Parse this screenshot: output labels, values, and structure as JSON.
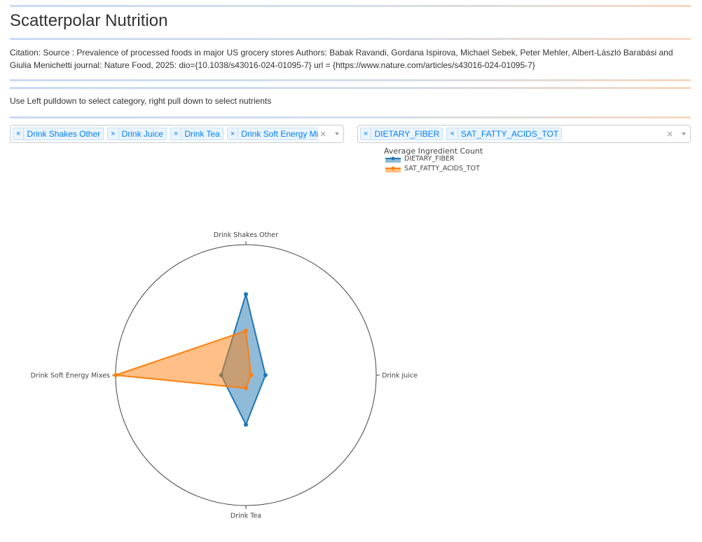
{
  "page": {
    "title": "Scatterpolar Nutrition",
    "citation": "Citation: Source : Prevalence of processed foods in major US grocery stores Authors: Babak Ravandi, Gordana Ispirova, Michael Sebek, Peter Mehler, Albert-László Barabási and Giulia Menichetti journal: Nature Food, 2025: dio={10.1038/s43016-024-01095-7} url = {https://www.nature.com/articles/s43016-024-01095-7}",
    "instructions": "Use Left pulldown to select category, right pull down to select nutrients"
  },
  "category_select": {
    "tags": [
      "Drink Shakes Other",
      "Drink Juice",
      "Drink Tea",
      "Drink Soft Energy Mixes"
    ],
    "remove_symbol": "×",
    "clear_symbol": "×"
  },
  "nutrient_select": {
    "tags": [
      "DIETARY_FIBER",
      "SAT_FATTY_ACIDS_TOT"
    ],
    "remove_symbol": "×",
    "clear_symbol": "×"
  },
  "chart_data": {
    "type": "scatterpolar",
    "legend_title": "Average Ingredient Count",
    "legend_position": "top-left",
    "categories": [
      "Drink Shakes Other",
      "Drink Juice",
      "Drink Tea",
      "Drink Soft Energy Mixes"
    ],
    "radial_range": [
      0,
      1
    ],
    "series": [
      {
        "name": "DIETARY_FIBER",
        "color": "#1f77b4",
        "values": [
          0.62,
          0.15,
          0.38,
          0.19
        ]
      },
      {
        "name": "SAT_FATTY_ACIDS_TOT",
        "color": "#ff7f0e",
        "values": [
          0.34,
          0.04,
          0.1,
          1.0
        ]
      }
    ]
  }
}
